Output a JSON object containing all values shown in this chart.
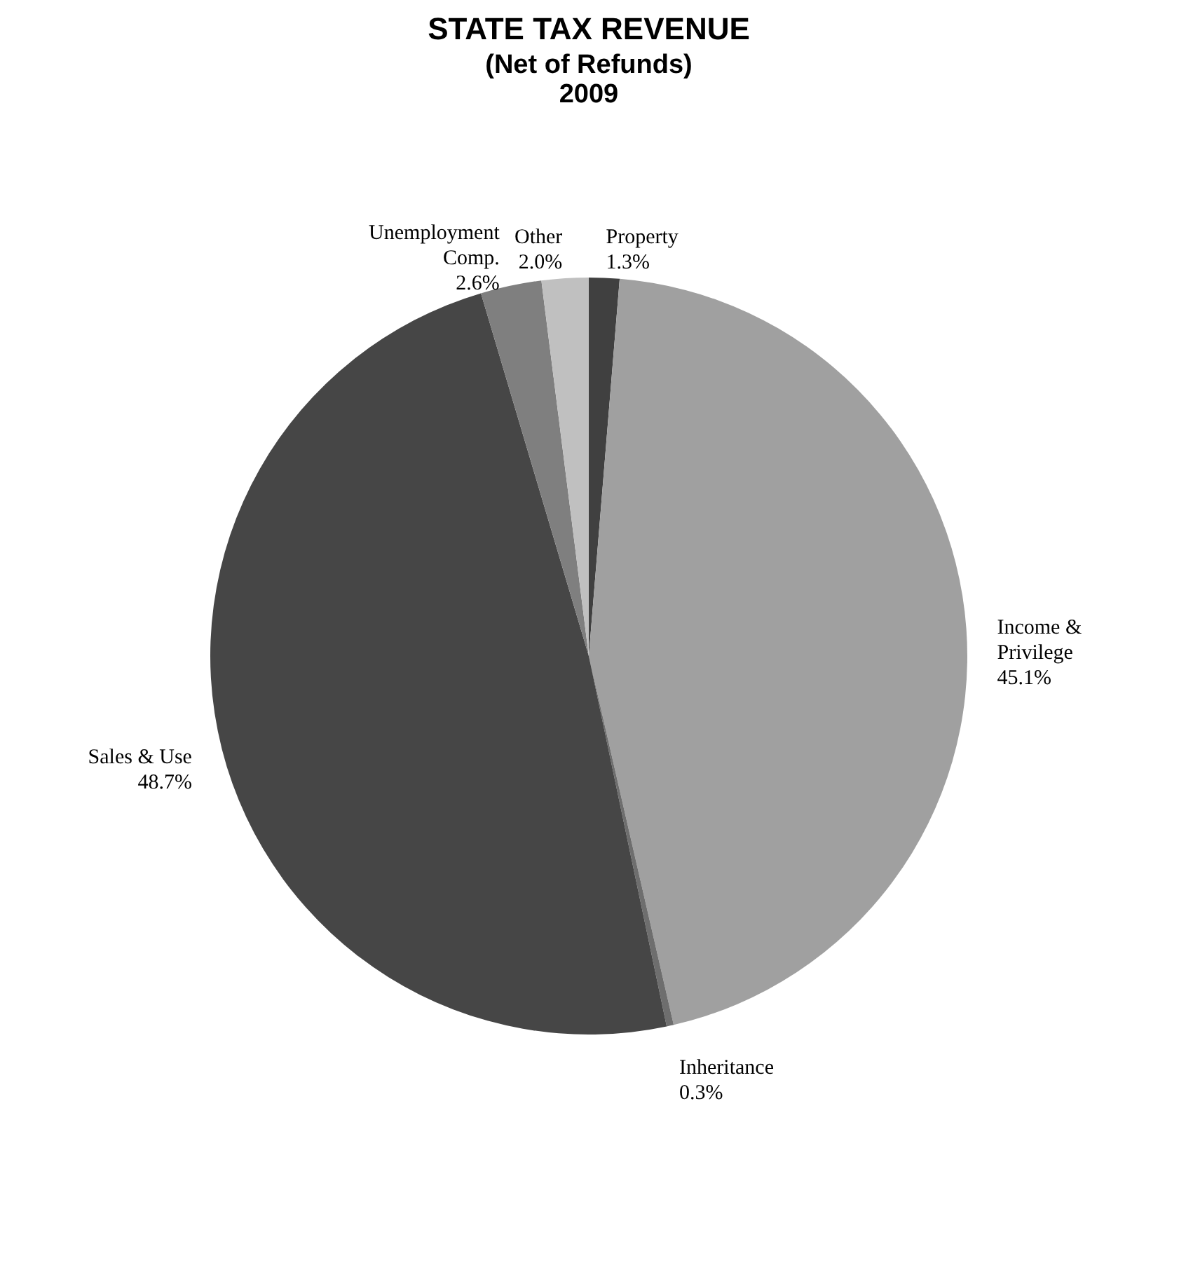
{
  "chart_data": {
    "type": "pie",
    "title": "STATE TAX REVENUE",
    "subtitle": [
      "(Net of Refunds)",
      "2009"
    ],
    "categories": [
      "Property",
      "Income & Privilege",
      "Inheritance",
      "Sales & Use",
      "Unemployment Comp.",
      "Other"
    ],
    "values": [
      1.3,
      45.1,
      0.3,
      48.7,
      2.6,
      2.0
    ],
    "value_labels": [
      "1.3%",
      "45.1%",
      "0.3%",
      "48.7%",
      "2.6%",
      "2.0%"
    ],
    "colors": [
      "#404040",
      "#a0a0a0",
      "#6e6e6e",
      "#464646",
      "#7f7f7f",
      "#c0c0c0"
    ],
    "legend": false
  }
}
